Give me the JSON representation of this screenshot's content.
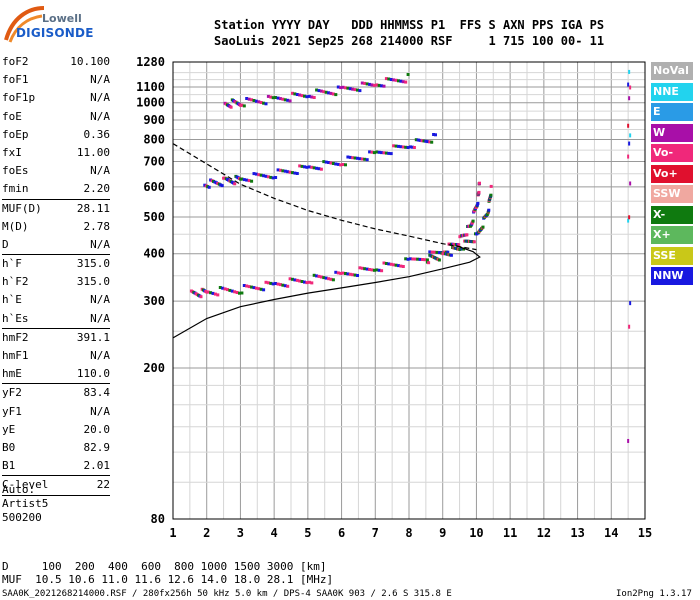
{
  "logo": {
    "line1": "Lowell",
    "line2": "DIGISONDE"
  },
  "header": {
    "line1": "Station YYYY DAY   DDD HHMMSS P1  FFS S AXN PPS IGA PS",
    "line2": "SaoLuis 2021 Sep25 268 214000 RSF     1 715 100 00- 11"
  },
  "params": [
    {
      "k": "foF2",
      "v": "10.100"
    },
    {
      "k": "foF1",
      "v": "N/A"
    },
    {
      "k": "foF1p",
      "v": "N/A"
    },
    {
      "k": "foE",
      "v": "N/A"
    },
    {
      "k": "foEp",
      "v": "0.36"
    },
    {
      "k": "fxI",
      "v": "11.00"
    },
    {
      "k": "foEs",
      "v": "N/A"
    },
    {
      "k": "fmin",
      "v": "2.20"
    },
    {
      "k": "MUF(D)",
      "v": "28.11"
    },
    {
      "k": "M(D)",
      "v": "2.78"
    },
    {
      "k": "D",
      "v": "N/A"
    },
    {
      "k": "h`F",
      "v": "315.0"
    },
    {
      "k": "h`F2",
      "v": "315.0"
    },
    {
      "k": "h`E",
      "v": "N/A"
    },
    {
      "k": "h`Es",
      "v": "N/A"
    },
    {
      "k": "hmF2",
      "v": "391.1"
    },
    {
      "k": "hmF1",
      "v": "N/A"
    },
    {
      "k": "hmE",
      "v": "110.0"
    },
    {
      "k": "yF2",
      "v": "83.4"
    },
    {
      "k": "yF1",
      "v": "N/A"
    },
    {
      "k": "yE",
      "v": "20.0"
    },
    {
      "k": "B0",
      "v": "82.9"
    },
    {
      "k": "B1",
      "v": "2.01"
    },
    {
      "k": "C-level",
      "v": "22"
    }
  ],
  "auto": {
    "line1": "Auto:",
    "line2": "Artist5",
    "line3": "500200"
  },
  "footer": {
    "d_line": "D     100  200  400  600  800 1000 1500 3000 [km]",
    "muf_line": "MUF  10.5 10.6 11.0 11.6 12.6 14.0 18.0 28.1 [MHz]",
    "file_line": "SAA0K_2021268214000.RSF / 280fx256h 50 kHz 5.0 km / DPS-4 SAA0K 903 / 2.6 S 315.8 E",
    "version": "Ion2Png 1.3.17"
  },
  "legend": [
    {
      "label": "NoVal",
      "color": "#b0b0b0"
    },
    {
      "label": "NNE",
      "color": "#22d3ee"
    },
    {
      "label": "E",
      "color": "#2a9be6"
    },
    {
      "label": "W",
      "color": "#a80fa8"
    },
    {
      "label": "Vo-",
      "color": "#f0287a"
    },
    {
      "label": "Vo+",
      "color": "#e0102e"
    },
    {
      "label": "SSW",
      "color": "#f0a8a0"
    },
    {
      "label": "X-",
      "color": "#0f7a0f"
    },
    {
      "label": "X+",
      "color": "#5db85d"
    },
    {
      "label": "SSE",
      "color": "#c9c818"
    },
    {
      "label": "NNW",
      "color": "#1818e0"
    }
  ],
  "chart_data": {
    "type": "scatter",
    "title": "",
    "xlabel": "",
    "ylabel": "",
    "xlim": [
      1,
      15
    ],
    "ylim": [
      80,
      1280
    ],
    "xticks": [
      "1",
      "2",
      "3",
      "4",
      "5",
      "6",
      "7",
      "8",
      "9",
      "10",
      "11",
      "12",
      "13",
      "14",
      "15"
    ],
    "yticks": [
      "80",
      "200",
      "300",
      "400",
      "500",
      "600",
      "700",
      "800",
      "900",
      "1000",
      "1100",
      "1280"
    ],
    "ytick_values": [
      80,
      200,
      300,
      400,
      500,
      600,
      700,
      800,
      900,
      1000,
      1100,
      1280
    ],
    "y_scale": "log",
    "grid": true,
    "series": [
      {
        "label_ref": "O-trace (1st hop)",
        "color": "#f0287a",
        "points": [
          [
            1.5,
            315
          ],
          [
            2,
            320
          ],
          [
            3,
            325
          ],
          [
            4,
            335
          ],
          [
            5,
            345
          ],
          [
            6,
            355
          ],
          [
            7,
            370
          ],
          [
            8,
            385
          ],
          [
            9,
            410
          ],
          [
            9.5,
            440
          ],
          [
            9.8,
            480
          ],
          [
            10.0,
            560
          ],
          [
            10.05,
            620
          ]
        ]
      },
      {
        "label_ref": "X-trace (1st hop)",
        "color": "#0f7a0f",
        "points": [
          [
            8.5,
            390
          ],
          [
            9,
            400
          ],
          [
            9.5,
            420
          ],
          [
            10,
            450
          ],
          [
            10.3,
            520
          ],
          [
            10.4,
            600
          ]
        ]
      },
      {
        "label_ref": "2nd hop",
        "color": "#1818e0",
        "points": [
          [
            1.9,
            615
          ],
          [
            2.5,
            625
          ],
          [
            3,
            635
          ],
          [
            4,
            655
          ],
          [
            5,
            680
          ],
          [
            6,
            705
          ],
          [
            7,
            740
          ],
          [
            8,
            780
          ],
          [
            8.8,
            820
          ]
        ]
      },
      {
        "label_ref": "3rd hop",
        "color": "#a80fa8",
        "points": [
          [
            2.5,
            1000
          ],
          [
            3,
            1010
          ],
          [
            4,
            1030
          ],
          [
            5,
            1060
          ],
          [
            6,
            1090
          ],
          [
            7,
            1130
          ],
          [
            8,
            1175
          ]
        ]
      },
      {
        "label_ref": "electron density profile",
        "color": "#000000",
        "line": true,
        "points": [
          [
            1,
            240
          ],
          [
            2,
            270
          ],
          [
            3,
            290
          ],
          [
            4,
            303
          ],
          [
            5,
            315
          ],
          [
            6,
            325
          ],
          [
            7,
            336
          ],
          [
            8,
            348
          ],
          [
            9,
            365
          ],
          [
            9.8,
            380
          ],
          [
            10.1,
            392
          ],
          [
            9.9,
            405
          ],
          [
            9.4,
            420
          ]
        ]
      },
      {
        "label_ref": "MUF transmission curve",
        "color": "#000000",
        "dashed": true,
        "points": [
          [
            1,
            780
          ],
          [
            2,
            690
          ],
          [
            3,
            610
          ],
          [
            4,
            560
          ],
          [
            5,
            520
          ],
          [
            6,
            490
          ],
          [
            7,
            465
          ],
          [
            8,
            445
          ],
          [
            9,
            425
          ],
          [
            10,
            410
          ]
        ]
      }
    ]
  }
}
